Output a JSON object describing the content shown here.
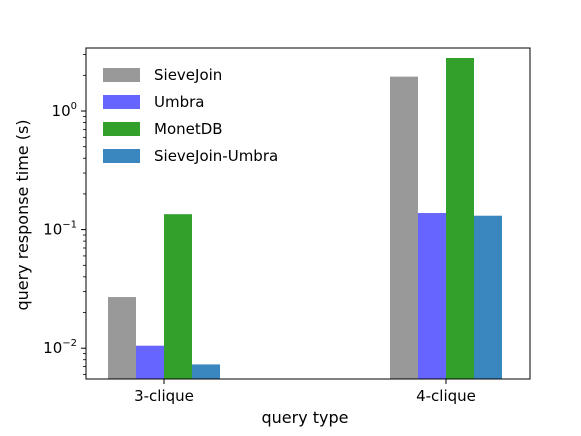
{
  "chart_data": {
    "type": "bar",
    "scale": "log",
    "categories": [
      "3-clique",
      "4-clique"
    ],
    "series": [
      {
        "name": "SieveJoin",
        "color": "#999999",
        "values": [
          0.027,
          1.95
        ]
      },
      {
        "name": "Umbra",
        "color": "#6666ff",
        "values": [
          0.0105,
          0.138
        ]
      },
      {
        "name": "MonetDB",
        "color": "#33a02c",
        "values": [
          0.135,
          2.8
        ]
      },
      {
        "name": "SieveJoin-Umbra",
        "color": "#3a86bf",
        "values": [
          0.0073,
          0.131
        ]
      }
    ],
    "xlabel": "query type",
    "ylabel": "query response time (s)",
    "ylim": [
      0.0055,
      3.4
    ],
    "yticks": [
      {
        "value": 0.01,
        "base": "10",
        "exp": "−2"
      },
      {
        "value": 0.1,
        "base": "10",
        "exp": "−1"
      },
      {
        "value": 1,
        "base": "10",
        "exp": "0"
      }
    ],
    "legend_position": "upper-left",
    "grid": false
  }
}
